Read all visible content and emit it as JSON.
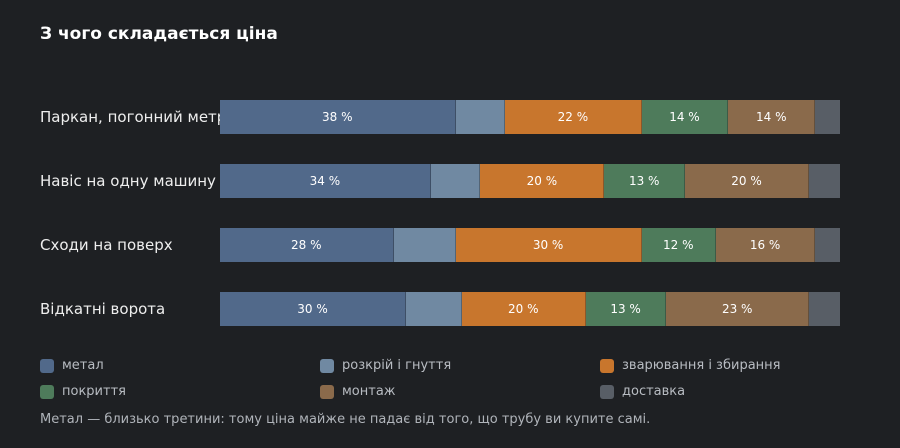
{
  "title": "З чого складається ціна",
  "note": "Метал — близько третини: тому ціна майже не падає від того, що трубу ви купите самі.",
  "chart_data": {
    "type": "bar",
    "orientation": "horizontal",
    "stacked": true,
    "normalized": true,
    "title": "З чого складається ціна",
    "categories": [
      "Паркан, погонний метр",
      "Навіс на одну машину",
      "Сходи на поверх",
      "Відкатні ворота"
    ],
    "series": [
      {
        "name": "метал",
        "color": "#51698a",
        "values": [
          38,
          34,
          28,
          30
        ]
      },
      {
        "name": "розкрій і гнуття",
        "color": "#7089a2",
        "values": [
          8,
          8,
          10,
          9
        ]
      },
      {
        "name": "зварювання і збирання",
        "color": "#c8762d",
        "values": [
          22,
          20,
          30,
          20
        ]
      },
      {
        "name": "покриття",
        "color": "#4e7b5b",
        "values": [
          14,
          13,
          12,
          13
        ]
      },
      {
        "name": "монтаж",
        "color": "#8a6a4b",
        "values": [
          14,
          20,
          16,
          23
        ]
      },
      {
        "name": "доставка",
        "color": "#585e66",
        "values": [
          4,
          5,
          4,
          5
        ]
      }
    ],
    "data_labels": {
      "unit": " %",
      "shown_series": [
        "метал",
        "зварювання і збирання",
        "покриття",
        "монтаж"
      ]
    },
    "legend_position": "bottom",
    "grid": false
  }
}
